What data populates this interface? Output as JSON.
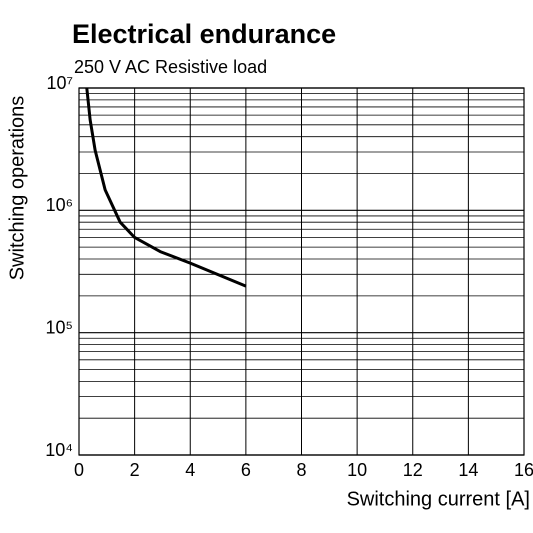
{
  "chart_data": {
    "type": "line",
    "title": "Electrical endurance",
    "subtitle": "250 V AC Resistive load",
    "x_label": "Switching current [A]",
    "y_label": "Switching operations",
    "x": [
      0.28,
      0.4,
      0.58,
      0.94,
      1.48,
      2,
      2.92,
      4,
      6
    ],
    "series": [
      {
        "name": "250 V AC Resistive load",
        "color": "#000000",
        "values": [
          10000000,
          5500000,
          3100000,
          1470000,
          800000,
          600000,
          460000,
          370000,
          240000
        ]
      }
    ],
    "xlim": [
      0,
      16
    ],
    "xticks": [
      0,
      2,
      4,
      6,
      8,
      10,
      12,
      14,
      16
    ],
    "ylim": [
      10000,
      10000000
    ],
    "log_y": true,
    "yticks": [
      {
        "value": 10000,
        "label": "10⁴"
      },
      {
        "value": 100000,
        "label": "10⁵"
      },
      {
        "value": 1000000,
        "label": "10⁶"
      },
      {
        "value": 10000000,
        "label": "10⁷"
      }
    ],
    "grid": true,
    "minor_grid": true
  }
}
